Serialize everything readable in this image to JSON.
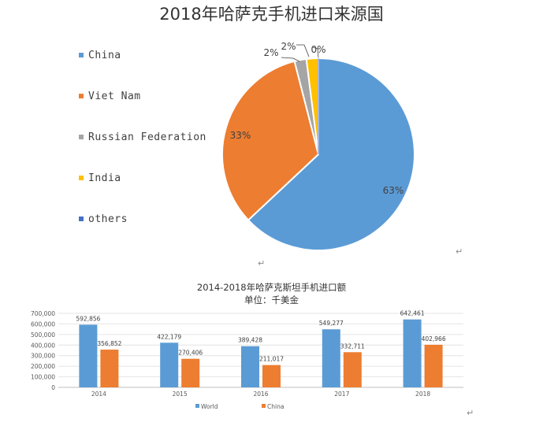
{
  "pie_chart": {
    "title": "2018年哈萨克手机进口来源国",
    "legend": [
      "China",
      "Viet Nam",
      "Russian Federation",
      "India",
      "others"
    ]
  },
  "bar_chart": {
    "title": "2014-2018年哈萨克斯坦手机进口额",
    "subtitle": "单位：千美金"
  },
  "para_mark": "↵",
  "colors": {
    "china": "#5B9BD5",
    "vietnam": "#ED7D31",
    "russia": "#A5A5A5",
    "india": "#FFC000",
    "others": "#4472C4",
    "world_bar": "#5B9BD5",
    "china_bar": "#ED7D31"
  },
  "chart_data": [
    {
      "type": "pie",
      "title": "2018年哈萨克手机进口来源国",
      "categories": [
        "China",
        "Viet Nam",
        "Russian Federation",
        "India",
        "others"
      ],
      "values": [
        63,
        33,
        2,
        2,
        0
      ],
      "labels": [
        "63%",
        "33%",
        "2%",
        "2%",
        "0%"
      ],
      "legend": "left"
    },
    {
      "type": "bar",
      "title": "2014-2018年哈萨克斯坦手机进口额",
      "subtitle": "单位：千美金",
      "categories": [
        "2014",
        "2015",
        "2016",
        "2017",
        "2018"
      ],
      "series": [
        {
          "name": "World",
          "values": [
            592856,
            422179,
            389428,
            549277,
            642461
          ],
          "labels": [
            "592,856",
            "422,179",
            "389,428",
            "549,277",
            "642,461"
          ]
        },
        {
          "name": "China",
          "values": [
            356852,
            270406,
            211017,
            332711,
            402966
          ],
          "labels": [
            "356,852",
            "270,406",
            "211,017",
            "332,711",
            "402,966"
          ]
        }
      ],
      "ylim": [
        0,
        700000
      ],
      "yticks": [
        "0",
        "100,000",
        "200,000",
        "300,000",
        "400,000",
        "500,000",
        "600,000",
        "700,000"
      ],
      "grid": true,
      "legend": "bottom"
    }
  ]
}
